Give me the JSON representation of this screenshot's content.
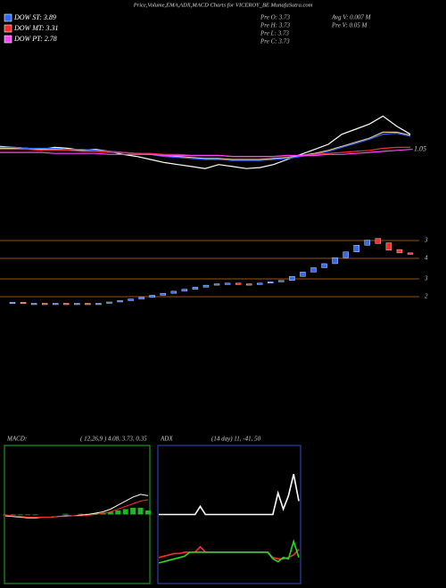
{
  "chart_data": [
    {
      "type": "line",
      "title": "Price,Volume,EMA,ADX,MACD Charts for VICEROY_BE MunafaSutra.com",
      "legend": [
        {
          "label": "DOW ST: 3.89",
          "color": "#2f6bff"
        },
        {
          "label": "DOW MT: 3.31",
          "color": "#ff2a2a"
        },
        {
          "label": "DOW PT: 2.78",
          "color": "#ff44ff"
        }
      ],
      "info": [
        "Pre  O: 3.73",
        "Pre  H: 3.73",
        "Pre  L: 3.73",
        "Pre  C: 3.73",
        "Avg V: 0.007 M",
        "Pre  V: 0.05 M"
      ],
      "ylim": [
        0.5,
        2.0
      ],
      "yticks": [
        1.05
      ],
      "series": [
        {
          "color": "#ffffff",
          "values": [
            1.08,
            1.07,
            1.06,
            1.05,
            1.07,
            1.06,
            1.04,
            1.05,
            1.03,
            1.0,
            0.98,
            0.95,
            0.92,
            0.9,
            0.88,
            0.86,
            0.9,
            0.88,
            0.86,
            0.87,
            0.9,
            0.95,
            1.0,
            1.05,
            1.1,
            1.2,
            1.25,
            1.3,
            1.38,
            1.28,
            1.2
          ]
        },
        {
          "color": "#e0c89a",
          "values": [
            1.06,
            1.06,
            1.06,
            1.05,
            1.05,
            1.05,
            1.04,
            1.04,
            1.03,
            1.02,
            1.01,
            1.0,
            0.99,
            0.98,
            0.97,
            0.96,
            0.96,
            0.95,
            0.95,
            0.95,
            0.96,
            0.97,
            0.99,
            1.01,
            1.04,
            1.08,
            1.12,
            1.16,
            1.22,
            1.22,
            1.19
          ]
        },
        {
          "color": "#2f6bff",
          "values": [
            1.07,
            1.07,
            1.06,
            1.06,
            1.06,
            1.05,
            1.05,
            1.04,
            1.03,
            1.02,
            1.01,
            1.0,
            0.98,
            0.97,
            0.96,
            0.95,
            0.95,
            0.94,
            0.94,
            0.94,
            0.95,
            0.96,
            0.98,
            1.0,
            1.03,
            1.07,
            1.11,
            1.15,
            1.2,
            1.21,
            1.18
          ]
        },
        {
          "color": "#ff2a2a",
          "values": [
            1.05,
            1.05,
            1.05,
            1.04,
            1.04,
            1.04,
            1.03,
            1.03,
            1.02,
            1.02,
            1.01,
            1.01,
            1.0,
            1.0,
            0.99,
            0.99,
            0.99,
            0.98,
            0.98,
            0.98,
            0.98,
            0.99,
            0.99,
            1.0,
            1.01,
            1.02,
            1.03,
            1.04,
            1.06,
            1.07,
            1.07
          ]
        },
        {
          "color": "#ff44ff",
          "values": [
            1.02,
            1.02,
            1.02,
            1.02,
            1.01,
            1.01,
            1.01,
            1.01,
            1.0,
            1.0,
            1.0,
            1.0,
            0.99,
            0.99,
            0.99,
            0.99,
            0.99,
            0.98,
            0.98,
            0.98,
            0.98,
            0.99,
            0.99,
            0.99,
            1.0,
            1.0,
            1.01,
            1.02,
            1.03,
            1.04,
            1.05
          ]
        }
      ]
    },
    {
      "type": "candlestick",
      "ylim": [
        2.0,
        4.2
      ],
      "up_color": "#2f6bff",
      "down_color": "#ff2a2a",
      "level_color": "#c87020",
      "level_labels": [
        "3",
        "4",
        "3",
        "2"
      ],
      "open": [
        2.13,
        2.15,
        2.12,
        2.12,
        2.11,
        2.12,
        2.11,
        2.12,
        2.11,
        2.12,
        2.16,
        2.2,
        2.25,
        2.3,
        2.36,
        2.42,
        2.48,
        2.54,
        2.6,
        2.66,
        2.7,
        2.72,
        2.7,
        2.68,
        2.72,
        2.76,
        2.8,
        2.92,
        3.05,
        3.18,
        3.3,
        3.48,
        3.65,
        3.85,
        4.05,
        3.92,
        3.72,
        3.62
      ],
      "close": [
        2.15,
        2.12,
        2.12,
        2.11,
        2.12,
        2.11,
        2.12,
        2.11,
        2.12,
        2.16,
        2.2,
        2.25,
        2.3,
        2.36,
        2.42,
        2.48,
        2.54,
        2.6,
        2.66,
        2.7,
        2.72,
        2.7,
        2.68,
        2.72,
        2.76,
        2.8,
        2.92,
        3.05,
        3.18,
        3.3,
        3.48,
        3.65,
        3.85,
        4.0,
        3.9,
        3.7,
        3.62,
        3.58
      ]
    },
    {
      "type": "macd",
      "title": "MACD:",
      "params": "( 12,26,9 ) 4.08, 3.73, 0.35",
      "ylim": [
        -1,
        1
      ],
      "border": "#1db81d",
      "series": [
        {
          "color": "#ffffff",
          "values": [
            -0.02,
            -0.03,
            -0.04,
            -0.05,
            -0.05,
            -0.04,
            -0.04,
            -0.03,
            -0.02,
            -0.02,
            -0.01,
            0.0,
            0.02,
            0.04,
            0.08,
            0.14,
            0.2,
            0.26,
            0.3,
            0.28
          ]
        },
        {
          "color": "#ff2a2a",
          "values": [
            -0.01,
            -0.02,
            -0.03,
            -0.04,
            -0.04,
            -0.04,
            -0.04,
            -0.03,
            -0.03,
            -0.02,
            -0.02,
            -0.01,
            0.0,
            0.02,
            0.04,
            0.08,
            0.12,
            0.16,
            0.2,
            0.22
          ]
        }
      ],
      "histogram": {
        "color": "#1db81d",
        "values": [
          -0.01,
          -0.01,
          -0.01,
          -0.01,
          -0.01,
          0.0,
          0.0,
          0.0,
          0.01,
          0.0,
          0.01,
          0.01,
          0.02,
          0.02,
          0.04,
          0.06,
          0.08,
          0.1,
          0.1,
          0.06
        ]
      }
    },
    {
      "type": "adx",
      "title": "ADX",
      "params": "(14 day) 11, -41, 50",
      "ylim": [
        0,
        100
      ],
      "border": "#2f4fcc",
      "series": [
        {
          "color": "#ffffff",
          "values": [
            50,
            50,
            50,
            50,
            50,
            50,
            50,
            50,
            56,
            50,
            50,
            50,
            50,
            50,
            50,
            50,
            50,
            50,
            50,
            50,
            50,
            50,
            50,
            66,
            54,
            64,
            80,
            60
          ]
        },
        {
          "color": "#ff2a2a",
          "values": [
            18,
            19,
            20,
            21,
            21,
            22,
            22,
            22,
            26,
            22,
            22,
            22,
            22,
            22,
            22,
            22,
            22,
            22,
            22,
            22,
            22,
            22,
            18,
            17,
            17,
            18,
            20,
            24
          ]
        },
        {
          "color": "#22dd22",
          "values": [
            14,
            15,
            16,
            17,
            18,
            19,
            22,
            22,
            22,
            22,
            22,
            22,
            22,
            22,
            22,
            22,
            22,
            22,
            22,
            22,
            22,
            22,
            17,
            15,
            18,
            17,
            30,
            18
          ]
        }
      ]
    }
  ]
}
